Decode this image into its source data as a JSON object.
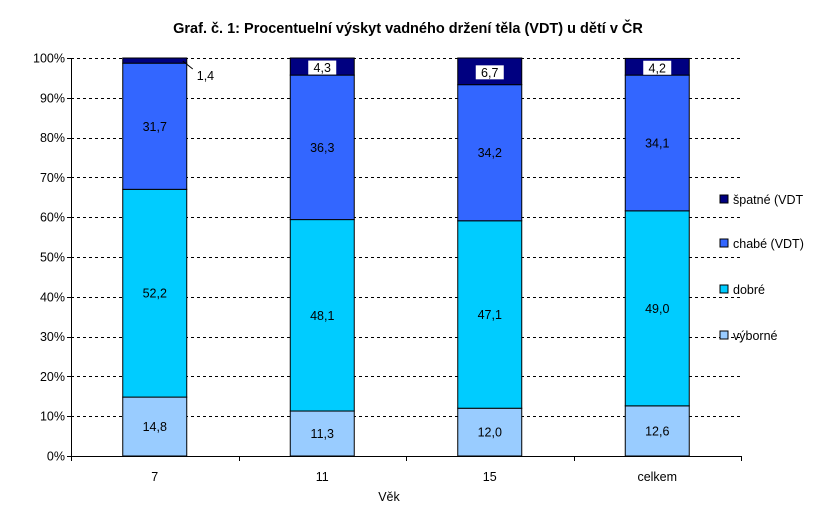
{
  "chart_data": {
    "type": "bar",
    "stacked": true,
    "title": "Graf. č. 1: Procentuelní výskyt vadného držení těla (VDT) u dětí v ČR",
    "xlabel": "Věk",
    "ylabel": "",
    "ylim": [
      0,
      100
    ],
    "y_tick_suffix": "%",
    "y_ticks": [
      0,
      10,
      20,
      30,
      40,
      50,
      60,
      70,
      80,
      90,
      100
    ],
    "grid": "horizontal-dashed",
    "legend_position": "right",
    "categories": [
      "7",
      "11",
      "15",
      "celkem"
    ],
    "series": [
      {
        "name": "výborné",
        "color": "#99ccff",
        "values": [
          14.8,
          11.3,
          12.0,
          12.6
        ],
        "labels": [
          "14,8",
          "11,3",
          "12,0",
          "12,6"
        ]
      },
      {
        "name": "dobré",
        "color": "#00ccff",
        "values": [
          52.2,
          48.1,
          47.1,
          49.0
        ],
        "labels": [
          "52,2",
          "48,1",
          "47,1",
          "49,0"
        ]
      },
      {
        "name": "chabé (VDT)",
        "color": "#3366ff",
        "values": [
          31.7,
          36.3,
          34.2,
          34.1
        ],
        "labels": [
          "31,7",
          "36,3",
          "34,2",
          "34,1"
        ]
      },
      {
        "name": "špatné (VDT",
        "color": "#000080",
        "values": [
          1.4,
          4.3,
          6.7,
          4.2
        ],
        "labels": [
          "1,4",
          "4,3",
          "6,7",
          "4,2"
        ]
      }
    ]
  }
}
